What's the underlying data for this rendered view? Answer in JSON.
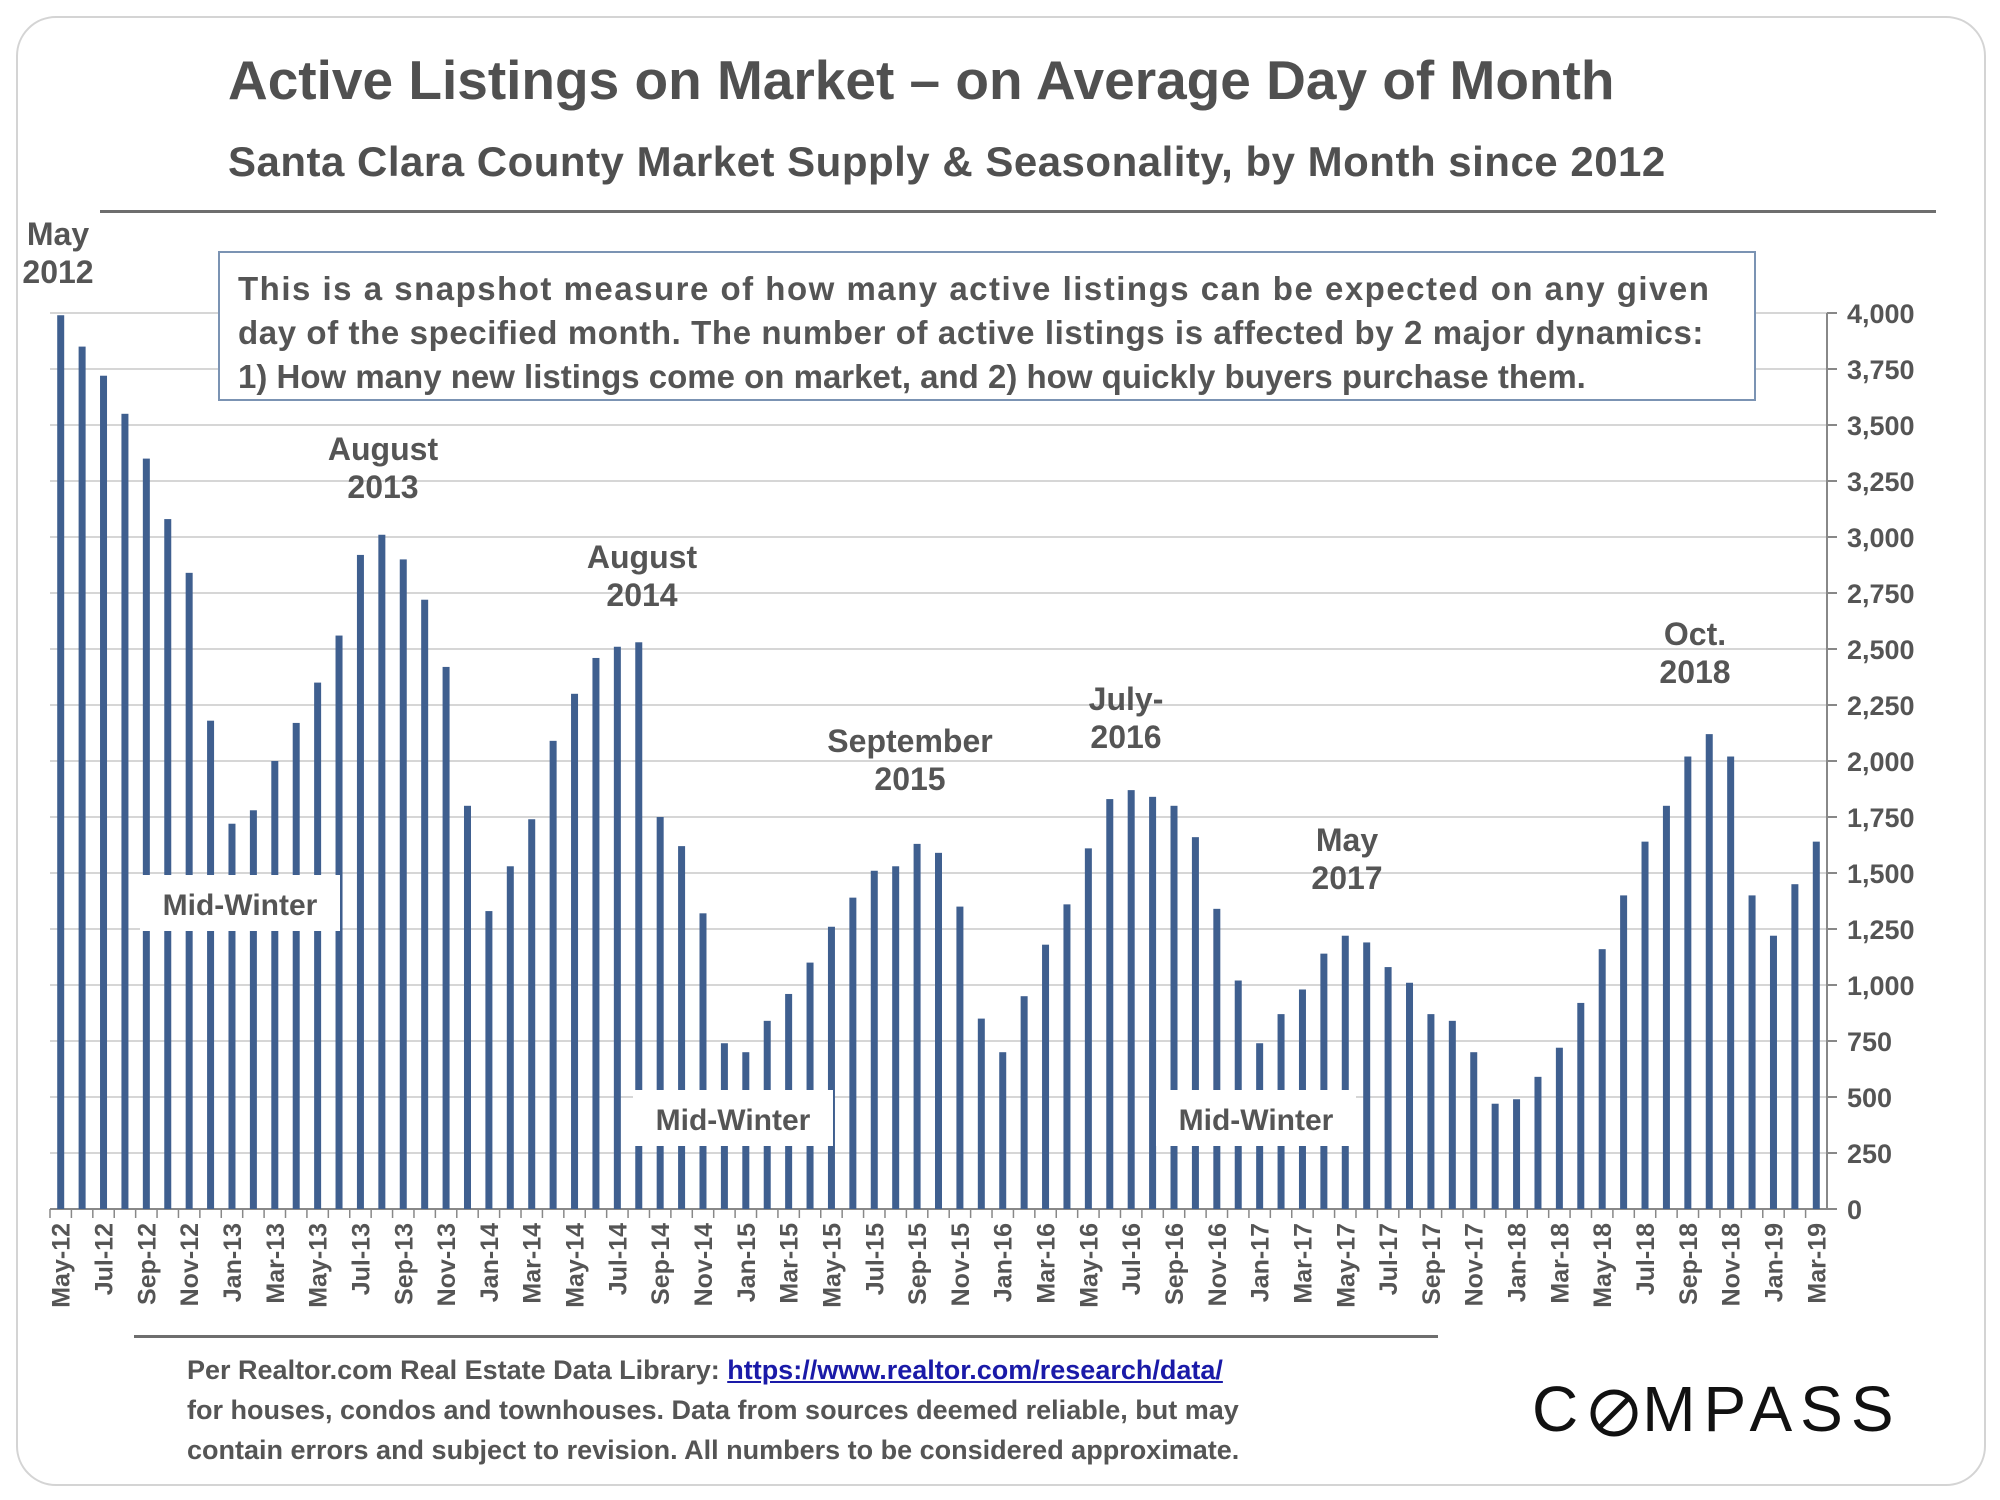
{
  "chart_data": {
    "type": "bar",
    "title": "Active Listings on Market – on Average Day of Month",
    "subtitle": "Santa Clara County Market Supply & Seasonality, by Month since 2012",
    "ylim": [
      0,
      4000
    ],
    "y_ticks": [
      "0",
      "250",
      "500",
      "750",
      "1,000",
      "1,250",
      "1,500",
      "1,750",
      "2,000",
      "2,250",
      "2,500",
      "2,750",
      "3,000",
      "3,250",
      "3,500",
      "3,750",
      "4,000"
    ],
    "y_axis_position": "right",
    "grid": true,
    "bar_color": "#3f5f8f",
    "categories": [
      "May-12",
      "Jun-12",
      "Jul-12",
      "Aug-12",
      "Sep-12",
      "Oct-12",
      "Nov-12",
      "Dec-12",
      "Jan-13",
      "Feb-13",
      "Mar-13",
      "Apr-13",
      "May-13",
      "Jun-13",
      "Jul-13",
      "Aug-13",
      "Sep-13",
      "Oct-13",
      "Nov-13",
      "Dec-13",
      "Jan-14",
      "Feb-14",
      "Mar-14",
      "Apr-14",
      "May-14",
      "Jun-14",
      "Jul-14",
      "Aug-14",
      "Sep-14",
      "Oct-14",
      "Nov-14",
      "Dec-14",
      "Jan-15",
      "Feb-15",
      "Mar-15",
      "Apr-15",
      "May-15",
      "Jun-15",
      "Jul-15",
      "Aug-15",
      "Sep-15",
      "Oct-15",
      "Nov-15",
      "Dec-15",
      "Jan-16",
      "Feb-16",
      "Mar-16",
      "Apr-16",
      "May-16",
      "Jun-16",
      "Jul-16",
      "Aug-16",
      "Sep-16",
      "Oct-16",
      "Nov-16",
      "Dec-16",
      "Jan-17",
      "Feb-17",
      "Mar-17",
      "Apr-17",
      "May-17",
      "Jun-17",
      "Jul-17",
      "Aug-17",
      "Sep-17",
      "Oct-17",
      "Nov-17",
      "Dec-17",
      "Jan-18",
      "Feb-18",
      "Mar-18",
      "Apr-18",
      "May-18",
      "Jun-18",
      "Jul-18",
      "Aug-18",
      "Sep-18",
      "Oct-18",
      "Nov-18",
      "Dec-18",
      "Jan-19",
      "Feb-19",
      "Mar-19"
    ],
    "tick_labels": [
      "May-12",
      "Jul-12",
      "Sep-12",
      "Nov-12",
      "Jan-13",
      "Mar-13",
      "May-13",
      "Jul-13",
      "Sep-13",
      "Nov-13",
      "Jan-14",
      "Mar-14",
      "May-14",
      "Jul-14",
      "Sep-14",
      "Nov-14",
      "Jan-15",
      "Mar-15",
      "May-15",
      "Jul-15",
      "Sep-15",
      "Nov-15",
      "Jan-16",
      "Mar-16",
      "May-16",
      "Jul-16",
      "Sep-16",
      "Nov-16",
      "Jan-17",
      "Mar-17",
      "May-17",
      "Jul-17",
      "Sep-17",
      "Nov-17",
      "Jan-18",
      "Mar-18",
      "May-18",
      "Jul-18",
      "Sep-18",
      "Nov-18",
      "Jan-19",
      "Mar-19"
    ],
    "values": [
      3990,
      3850,
      3720,
      3550,
      3350,
      3080,
      2840,
      2180,
      1720,
      1780,
      2000,
      2170,
      2350,
      2560,
      2920,
      3010,
      2900,
      2720,
      2420,
      1800,
      1330,
      1530,
      1740,
      2090,
      2300,
      2460,
      2510,
      2530,
      1750,
      1620,
      1320,
      740,
      700,
      840,
      960,
      1100,
      1260,
      1390,
      1510,
      1530,
      1630,
      1590,
      1350,
      850,
      700,
      950,
      1180,
      1360,
      1610,
      1830,
      1870,
      1840,
      1800,
      1660,
      1340,
      1020,
      740,
      870,
      980,
      1140,
      1220,
      1190,
      1080,
      1010,
      870,
      840,
      700,
      470,
      490,
      590,
      720,
      920,
      1160,
      1400,
      1640,
      1800,
      2020,
      2120,
      2020,
      1400,
      1220,
      1450,
      1640
    ],
    "annotations": [
      {
        "text_lines": [
          "May",
          "2012"
        ],
        "category": "May-12"
      },
      {
        "text_lines": [
          "August",
          "2013"
        ],
        "category": "Aug-13"
      },
      {
        "text_lines": [
          "August",
          "2014"
        ],
        "category": "Aug-14"
      },
      {
        "text_lines": [
          "September",
          "2015"
        ],
        "category": "Sep-15"
      },
      {
        "text_lines": [
          "July-",
          "2016"
        ],
        "category": "Jul-16"
      },
      {
        "text_lines": [
          "May",
          "2017"
        ],
        "category": "May-17"
      },
      {
        "text_lines": [
          "Oct.",
          "2018"
        ],
        "category": "Oct-18"
      }
    ],
    "season_labels": [
      "Mid-Winter",
      "Mid-Winter",
      "Mid-Winter"
    ]
  },
  "note": {
    "line1": "This is a snapshot measure of how many active listings can be expected on any given",
    "line2": "day of the specified month. The number of active listings is affected by 2 major dynamics:",
    "line3": "1) How many new listings come on market, and 2) how quickly buyers purchase them."
  },
  "footnote": {
    "prefix": "Per Realtor.com Real Estate  Data Library: ",
    "link": "https://www.realtor.com/research/data/",
    "line2": "for houses,  condos  and townhouses.  Data from sources  deemed reliable, but may",
    "line3": "contain errors and subject to revision. All numbers to be considered approximate."
  },
  "logo": {
    "prefix": "C",
    "suffix": "MPASS"
  }
}
